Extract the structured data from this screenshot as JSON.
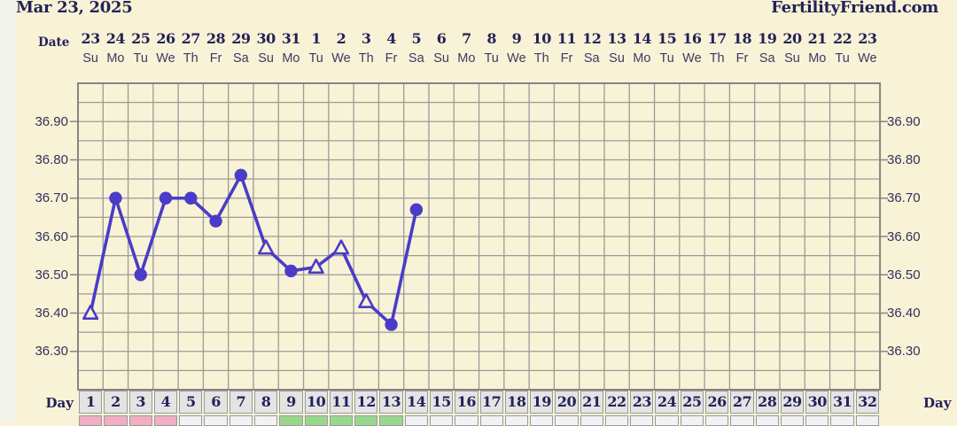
{
  "header": {
    "title": "Mar 23, 2025",
    "brand": "FertilityFriend.com"
  },
  "labels": {
    "date_row": "Date",
    "day_row_left": "Day",
    "day_row_right": "Day"
  },
  "calendar": {
    "dates": [
      "23",
      "24",
      "25",
      "26",
      "27",
      "28",
      "29",
      "30",
      "31",
      "1",
      "2",
      "3",
      "4",
      "5",
      "6",
      "7",
      "8",
      "9",
      "10",
      "11",
      "12",
      "13",
      "14",
      "15",
      "16",
      "17",
      "18",
      "19",
      "20",
      "21",
      "22",
      "23"
    ],
    "weekdays": [
      "Su",
      "Mo",
      "Tu",
      "We",
      "Th",
      "Fr",
      "Sa",
      "Su",
      "Mo",
      "Tu",
      "We",
      "Th",
      "Fr",
      "Sa",
      "Su",
      "Mo",
      "Tu",
      "We",
      "Th",
      "Fr",
      "Sa",
      "Su",
      "Mo",
      "Tu",
      "We",
      "Th",
      "Fr",
      "Sa",
      "Su",
      "Mo",
      "Tu",
      "We"
    ],
    "cycle_days": [
      "1",
      "2",
      "3",
      "4",
      "5",
      "6",
      "7",
      "8",
      "9",
      "10",
      "11",
      "12",
      "13",
      "14",
      "15",
      "16",
      "17",
      "18",
      "19",
      "20",
      "21",
      "22",
      "23",
      "24",
      "25",
      "26",
      "27",
      "28",
      "29",
      "30",
      "31",
      "32"
    ]
  },
  "y_axis": {
    "labels": [
      "36.90",
      "36.80",
      "36.70",
      "36.60",
      "36.50",
      "36.40",
      "36.30"
    ],
    "min": 36.2,
    "max": 37.0,
    "minor_step": 0.05,
    "label_step": 0.1
  },
  "chart_data": {
    "type": "line",
    "x_slots": 32,
    "xlabel": "Day",
    "x": [
      1,
      2,
      3,
      4,
      5,
      6,
      7,
      8,
      9,
      10,
      11,
      12,
      13,
      14
    ],
    "series": [
      {
        "name": "temperature",
        "values": [
          36.4,
          36.7,
          36.5,
          36.7,
          36.7,
          36.64,
          36.76,
          36.57,
          36.51,
          36.52,
          36.57,
          36.43,
          36.37,
          36.67
        ],
        "markers": [
          "triangle",
          "circle",
          "circle",
          "circle",
          "circle",
          "circle",
          "circle",
          "triangle",
          "circle",
          "triangle",
          "triangle",
          "triangle",
          "circle",
          "circle"
        ]
      }
    ],
    "ylim": [
      36.2,
      37.0
    ],
    "y_ticks": [
      36.3,
      36.4,
      36.5,
      36.6,
      36.7,
      36.8,
      36.9
    ],
    "grid": true,
    "legend": false
  },
  "phases": [
    {
      "name": "pink-band",
      "start_day": 1,
      "end_day": 4,
      "color": "#f2aec3"
    },
    {
      "name": "green-band",
      "start_day": 9,
      "end_day": 13,
      "color": "#98d88d"
    }
  ],
  "colors": {
    "page_bg": "#f8f3d6",
    "left_margin": "#f3f4eb",
    "grid_line": "#9a9a9a",
    "grid_border": "#858585",
    "text_dark": "#232258",
    "text_axis": "#31315e",
    "text_weekday": "#3a3a66",
    "line": "#4a3cc8",
    "day_cell_bg": "#e4e4e4",
    "day_cell_border": "#9a9a9a",
    "phase_default": "#f2f2f4",
    "row_gap_bg": "#fdfdfd"
  }
}
